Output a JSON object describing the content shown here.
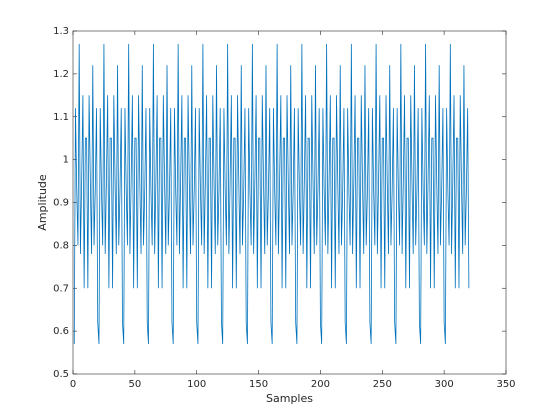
{
  "chart_data": {
    "type": "line",
    "xlabel": "Samples",
    "ylabel": "Amplitude",
    "xlim": [
      0,
      350
    ],
    "xticks": [
      0,
      50,
      100,
      150,
      200,
      250,
      300,
      350
    ],
    "ylim": [
      0.5,
      1.3
    ],
    "yticks": [
      0.5,
      0.6,
      0.7,
      0.8,
      0.9,
      1,
      1.1,
      1.2,
      1.3
    ],
    "color": "#0072bd",
    "values": [
      0.57,
      1.12,
      0.93,
      0.8,
      1.27,
      0.78,
      0.95,
      1.15,
      0.7,
      1.05,
      1.05,
      0.7,
      1.15,
      0.95,
      0.78,
      1.22,
      0.8,
      0.93,
      1.12,
      0.62,
      0.57,
      1.12,
      0.93,
      0.8,
      1.27,
      0.78,
      0.95,
      1.15,
      0.7,
      1.05,
      1.05,
      0.7,
      1.15,
      0.95,
      0.78,
      1.22,
      0.8,
      0.93,
      1.12,
      0.62,
      0.57,
      1.12,
      0.93,
      0.8,
      1.27,
      0.78,
      0.95,
      1.15,
      0.7,
      1.05,
      1.05,
      0.7,
      1.15,
      0.95,
      0.78,
      1.22,
      0.8,
      0.93,
      1.12,
      0.62,
      0.57,
      1.12,
      0.93,
      0.8,
      1.27,
      0.78,
      0.95,
      1.15,
      0.7,
      1.05,
      1.05,
      0.7,
      1.15,
      0.95,
      0.78,
      1.22,
      0.8,
      0.93,
      1.12,
      0.62,
      0.57,
      1.12,
      0.93,
      0.8,
      1.27,
      0.78,
      0.95,
      1.15,
      0.7,
      1.05,
      1.05,
      0.7,
      1.15,
      0.95,
      0.78,
      1.22,
      0.8,
      0.93,
      1.12,
      0.62,
      0.57,
      1.12,
      0.93,
      0.8,
      1.27,
      0.78,
      0.95,
      1.15,
      0.7,
      1.05,
      1.05,
      0.7,
      1.15,
      0.95,
      0.78,
      1.22,
      0.8,
      0.93,
      1.12,
      0.62,
      0.57,
      1.12,
      0.93,
      0.8,
      1.27,
      0.78,
      0.95,
      1.15,
      0.7,
      1.05,
      1.05,
      0.7,
      1.15,
      0.95,
      0.78,
      1.22,
      0.8,
      0.93,
      1.12,
      0.62,
      0.57,
      1.12,
      0.93,
      0.8,
      1.27,
      0.78,
      0.95,
      1.15,
      0.7,
      1.05,
      1.05,
      0.7,
      1.15,
      0.95,
      0.78,
      1.22,
      0.8,
      0.93,
      1.12,
      0.62,
      0.57,
      1.12,
      0.93,
      0.8,
      1.27,
      0.78,
      0.95,
      1.15,
      0.7,
      1.05,
      1.05,
      0.7,
      1.15,
      0.95,
      0.78,
      1.22,
      0.8,
      0.93,
      1.12,
      0.62,
      0.57,
      1.12,
      0.93,
      0.8,
      1.27,
      0.78,
      0.95,
      1.15,
      0.7,
      1.05,
      1.05,
      0.7,
      1.15,
      0.95,
      0.78,
      1.22,
      0.8,
      0.93,
      1.12,
      0.62,
      0.57,
      1.12,
      0.93,
      0.8,
      1.27,
      0.78,
      0.95,
      1.15,
      0.7,
      1.05,
      1.05,
      0.7,
      1.15,
      0.95,
      0.78,
      1.22,
      0.8,
      0.93,
      1.12,
      0.62,
      0.57,
      1.12,
      0.93,
      0.8,
      1.27,
      0.78,
      0.95,
      1.15,
      0.7,
      1.05,
      1.05,
      0.7,
      1.15,
      0.95,
      0.78,
      1.22,
      0.8,
      0.93,
      1.12,
      0.62,
      0.57,
      1.12,
      0.93,
      0.8,
      1.27,
      0.78,
      0.95,
      1.15,
      0.7,
      1.05,
      1.05,
      0.7,
      1.15,
      0.95,
      0.78,
      1.22,
      0.8,
      0.93,
      1.12,
      0.62,
      0.57,
      1.12,
      0.93,
      0.8,
      1.27,
      0.78,
      0.95,
      1.15,
      0.7,
      1.05,
      1.05,
      0.7,
      1.15,
      0.95,
      0.78,
      1.22,
      0.8,
      0.93,
      1.12,
      0.62,
      0.57,
      1.12,
      0.93,
      0.8,
      1.27,
      0.78,
      0.95,
      1.15,
      0.7,
      1.05,
      1.05,
      0.7,
      1.15,
      0.95,
      0.78,
      1.22,
      0.8,
      0.93,
      1.12,
      0.62,
      0.57,
      1.12,
      0.93,
      0.8,
      1.27,
      0.78,
      0.95,
      1.15,
      0.7,
      1.05,
      1.05,
      0.7,
      1.15,
      0.95,
      0.78,
      1.22,
      0.8,
      0.93,
      1.12,
      0.7
    ]
  }
}
